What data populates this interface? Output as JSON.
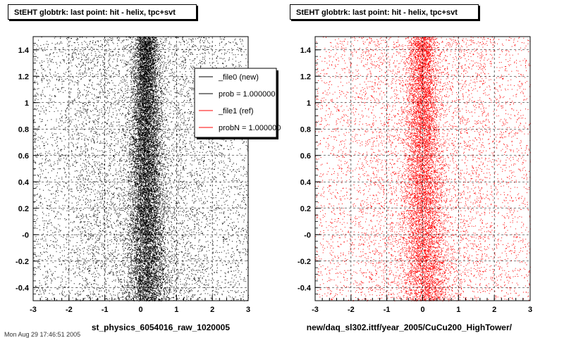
{
  "footer_text": "Mon Aug 29 17:46:51 2005",
  "chart_data": [
    {
      "type": "scatter",
      "title": "StEHT globtrk: last point: hit - helix, tpc+svt",
      "xlabel": "st_physics_6054016_raw_1020005",
      "ylabel": "",
      "xlim": [
        -3,
        3
      ],
      "ylim": [
        -0.5,
        1.5
      ],
      "x_ticks": [
        -3,
        -2,
        -1,
        0,
        1,
        2,
        3
      ],
      "y_ticks": [
        -0.4,
        -0.2,
        -0.0,
        0.2,
        0.4,
        0.6,
        0.8,
        1.0,
        1.2,
        1.4
      ],
      "y_tick_labels": [
        "-0.4",
        "-0.2",
        "-0",
        "0.2",
        "0.4",
        "0.6",
        "0.8",
        "1",
        "1.2",
        "1.4"
      ],
      "grid": true,
      "marker_color": "#000000",
      "series": [
        {
          "name": "_file0 (new)",
          "color": "#000000"
        },
        {
          "name": "prob = 1.000000",
          "color": "#000000"
        },
        {
          "name": "_file1 (ref)",
          "color": "#ff0000"
        },
        {
          "name": "probN = 1.000000",
          "color": "#ff0000"
        }
      ],
      "legend_position": "top-right",
      "distribution": {
        "core_x": [
          [
            1.5,
            0.15
          ],
          [
            0.5,
            0.15
          ],
          [
            -0.5,
            0.2
          ]
        ],
        "core_y": [
          [
            -0.5,
            0.05
          ],
          [
            1.5,
            -0.05
          ]
        ],
        "core_sigma": 0.3,
        "background_density": "uniform"
      }
    },
    {
      "type": "scatter",
      "title": "StEHT globtrk: last point: hit - helix, tpc+svt",
      "xlabel": "new/daq_sl302.ittf/year_2005/CuCu200_HighTower/",
      "ylabel": "",
      "xlim": [
        -3,
        3
      ],
      "ylim": [
        -0.5,
        1.5
      ],
      "x_ticks": [
        -3,
        -2,
        -1,
        0,
        1,
        2,
        3
      ],
      "y_ticks": [
        -0.4,
        -0.2,
        -0.0,
        0.2,
        0.4,
        0.6,
        0.8,
        1.0,
        1.2,
        1.4
      ],
      "y_tick_labels": [
        "-0.4",
        "-0.2",
        "-0",
        "0.2",
        "0.4",
        "0.6",
        "0.8",
        "1",
        "1.2",
        "1.4"
      ],
      "grid": true,
      "marker_color": "#ff0000",
      "series": [],
      "legend_position": "",
      "distribution": {
        "core_x": [
          [
            1.5,
            0.0
          ],
          [
            0.5,
            0.0
          ],
          [
            -0.5,
            0.1
          ]
        ],
        "core_y": [
          [
            -0.5,
            0.0
          ],
          [
            1.5,
            0.0
          ]
        ],
        "core_sigma": 0.35,
        "background_density": "uniform"
      }
    }
  ]
}
